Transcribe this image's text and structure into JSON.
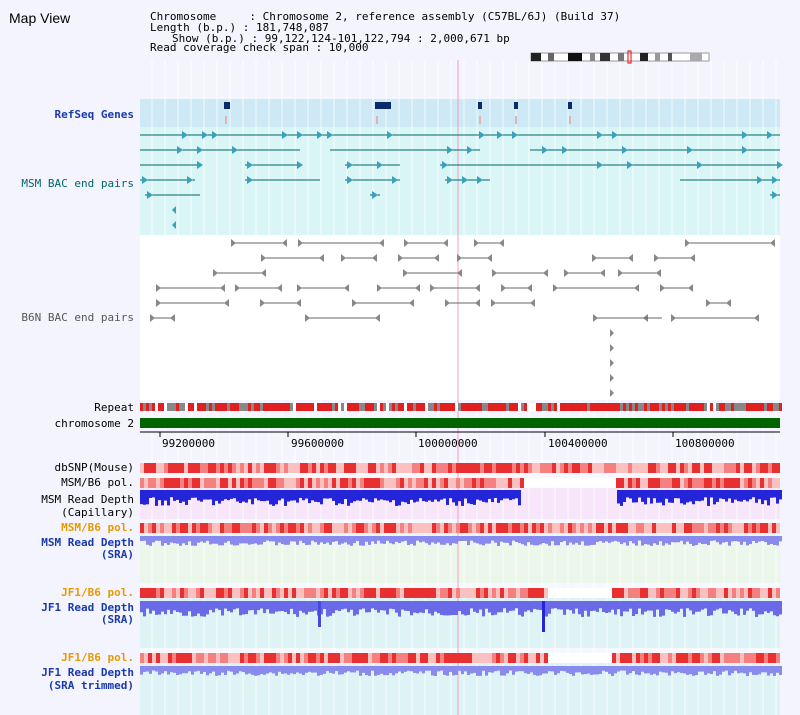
{
  "app": {
    "title": "Map View"
  },
  "info": {
    "chromosome_line": "Chromosome     : Chromosome 2, reference assembly (C57BL/6J) (Build 37)",
    "length_line": "Length (b.p.) : 181,748,087",
    "show_line": "Show (b.p.) : 99,122,124-101,122,794 : 2,000,671 bp",
    "coverage_line": "Read coverage check span : 10,000"
  },
  "tracks": {
    "refseq": "RefSeq Genes",
    "msm_bac": "MSM BAC end pairs",
    "b6n_bac": "B6N BAC end pairs",
    "repeat": "Repeat",
    "chromosome": "chromosome 2",
    "dbsnp": "dbSNP(Mouse)",
    "msm_pol": "MSM/B6 pol.",
    "msm_depth_cap_1": "MSM Read Depth",
    "msm_depth_cap_2": "(Capillary)",
    "msm_pol_2": "MSM/B6 pol.",
    "msm_depth_sra_1": "MSM Read Depth",
    "msm_depth_sra_2": "(SRA)",
    "jf1_pol": "JF1/B6 pol.",
    "jf1_depth_1": "JF1 Read Depth",
    "jf1_depth_2": "(SRA)",
    "jf1_pol_2": "JF1/B6 pol.",
    "jf1_trim_1": "JF1 Read Depth",
    "jf1_trim_2": "(SRA trimmed)"
  },
  "axis": {
    "ticks": [
      "99200000",
      "99600000",
      "100000000",
      "100400000",
      "100800000"
    ]
  },
  "colors": {
    "accent_link": "#1a3aaa",
    "teal": "#066666",
    "chromosome_bar": "#006400",
    "snp_red": "#e83030",
    "depth_blue": "#2020e0"
  }
}
